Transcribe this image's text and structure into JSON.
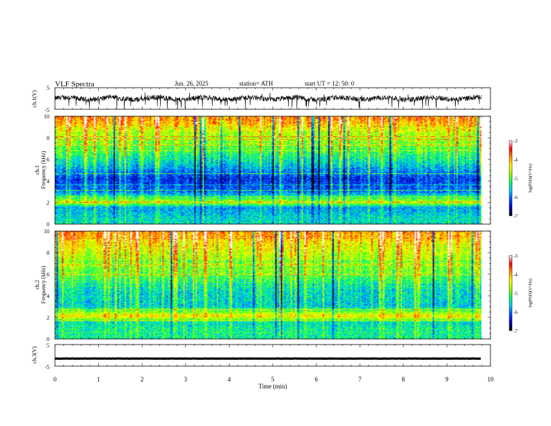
{
  "header": {
    "title": "VLF  Spectra",
    "date": "Jun. 26, 2025",
    "station": "station= ATH",
    "start": "start  UT  =   12: 50: 0"
  },
  "colors": {
    "colormap": [
      "#000000",
      "#0000c8",
      "#0050ff",
      "#00c8ff",
      "#00ff64",
      "#a0ff00",
      "#ffff00",
      "#ff9600",
      "#ff0000",
      "#ffffff"
    ],
    "trace": "#000000"
  },
  "chart_data": [
    {
      "type": "line",
      "name": "ch1-waveform",
      "ylabel": "ch.1(V)",
      "ylim": [
        -5,
        5
      ],
      "yticks": [
        "5",
        "-5"
      ],
      "xlim": [
        0,
        10
      ],
      "baseline_volts": 0.0,
      "typical_noise_volts": 1.5,
      "spike_range_volts": [
        -5,
        3
      ]
    },
    {
      "type": "heatmap",
      "name": "ch1-spectrogram",
      "ylabel": "ch.1\nFrequency  (kHz)",
      "ylim": [
        0,
        10
      ],
      "yticks": [
        "0",
        "2",
        "4",
        "6",
        "8",
        "10"
      ],
      "xlim": [
        0,
        9.8
      ],
      "colorbar": {
        "label": "log(PSD)(V²/Hz)",
        "range": [
          -7,
          -3
        ],
        "ticks": [
          "-3",
          "-4",
          "-5",
          "-6",
          "-7"
        ]
      },
      "frequency_levels": [
        {
          "f": 0.5,
          "level": -5.5
        },
        {
          "f": 1.5,
          "level": -5.8
        },
        {
          "f": 2.0,
          "level": -4.6
        },
        {
          "f": 3.0,
          "level": -6.0
        },
        {
          "f": 4.2,
          "level": -6.3
        },
        {
          "f": 5.5,
          "level": -5.6
        },
        {
          "f": 7.0,
          "level": -5.0
        },
        {
          "f": 8.5,
          "level": -4.6
        },
        {
          "f": 9.6,
          "level": -3.9
        }
      ]
    },
    {
      "type": "heatmap",
      "name": "ch2-spectrogram",
      "ylabel": "ch.2\nFrequency  (kHz)",
      "ylim": [
        0,
        10
      ],
      "yticks": [
        "0",
        "2",
        "4",
        "6",
        "8",
        "10"
      ],
      "xlim": [
        0,
        9.8
      ],
      "colorbar": {
        "label": "log(PSD)(V²/Hz)",
        "range": [
          -7,
          -3
        ],
        "ticks": [
          "-3",
          "-4",
          "-5",
          "-6",
          "-7"
        ]
      },
      "frequency_levels": [
        {
          "f": 0.5,
          "level": -5.3
        },
        {
          "f": 1.5,
          "level": -5.5
        },
        {
          "f": 2.1,
          "level": -4.3
        },
        {
          "f": 3.0,
          "level": -5.6
        },
        {
          "f": 4.5,
          "level": -5.5
        },
        {
          "f": 6.0,
          "level": -5.0
        },
        {
          "f": 7.5,
          "level": -4.7
        },
        {
          "f": 9.0,
          "level": -4.3
        },
        {
          "f": 10.0,
          "level": -3.9
        }
      ]
    },
    {
      "type": "line",
      "name": "ch3-waveform",
      "ylabel": "ch.3(V)",
      "ylim": [
        -5,
        5
      ],
      "yticks": [
        "5",
        "-5"
      ],
      "xlim": [
        0,
        10
      ],
      "baseline_volts": -1.5,
      "typical_noise_volts": 0.1
    }
  ],
  "xaxis": {
    "label": "Time  (min)",
    "ticks": [
      0,
      1,
      2,
      3,
      4,
      5,
      6,
      7,
      8,
      9,
      10
    ],
    "tick_labels": [
      "0",
      "1",
      "2",
      "3",
      "4",
      "5",
      "6",
      "7",
      "8",
      "9",
      "10"
    ]
  }
}
